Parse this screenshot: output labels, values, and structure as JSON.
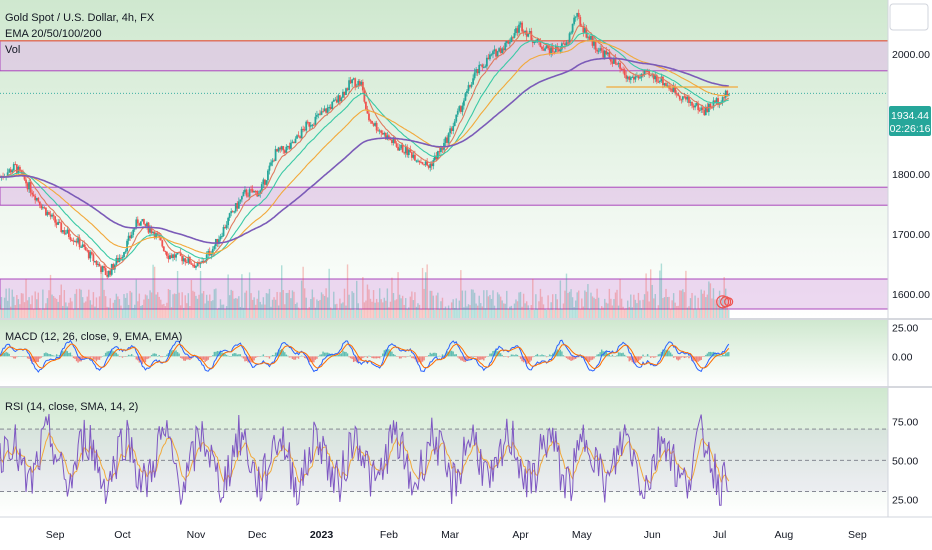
{
  "chart_data": [
    {
      "type": "candlestick",
      "title": "Gold Spot / U.S. Dollar, 4h, FX",
      "indicators": [
        "EMA 20/50/100/200",
        "Vol"
      ],
      "ylim": [
        1560,
        2090
      ],
      "yticks": [
        2000.0,
        1800.0,
        1700.0,
        1600.0
      ],
      "price": {
        "last": "1934.44",
        "countdown": "02:26:16",
        "value": 1934.44
      },
      "zones": [
        {
          "from": 1972,
          "to": 2022
        },
        {
          "from": 1748,
          "to": 1778
        },
        {
          "from": 1575,
          "to": 1625
        }
      ],
      "resistance_line": 2022,
      "price_path": [
        [
          0,
          1795
        ],
        [
          5,
          1812
        ],
        [
          10,
          1775
        ],
        [
          15,
          1738
        ],
        [
          20,
          1708
        ],
        [
          25,
          1690
        ],
        [
          30,
          1660
        ],
        [
          35,
          1632
        ],
        [
          40,
          1668
        ],
        [
          45,
          1722
        ],
        [
          50,
          1705
        ],
        [
          55,
          1665
        ],
        [
          60,
          1660
        ],
        [
          65,
          1645
        ],
        [
          70,
          1680
        ],
        [
          75,
          1728
        ],
        [
          80,
          1768
        ],
        [
          85,
          1770
        ],
        [
          90,
          1835
        ],
        [
          95,
          1845
        ],
        [
          100,
          1880
        ],
        [
          105,
          1900
        ],
        [
          110,
          1922
        ],
        [
          115,
          1955
        ],
        [
          118,
          1950
        ],
        [
          120,
          1895
        ],
        [
          125,
          1868
        ],
        [
          130,
          1845
        ],
        [
          135,
          1832
        ],
        [
          140,
          1812
        ],
        [
          145,
          1848
        ],
        [
          150,
          1905
        ],
        [
          155,
          1965
        ],
        [
          160,
          1995
        ],
        [
          165,
          2015
        ],
        [
          170,
          2048
        ],
        [
          175,
          2020
        ],
        [
          180,
          2005
        ],
        [
          185,
          2015
        ],
        [
          188,
          2065
        ],
        [
          192,
          2030
        ],
        [
          195,
          2010
        ],
        [
          200,
          1990
        ],
        [
          205,
          1958
        ],
        [
          210,
          1965
        ],
        [
          215,
          1960
        ],
        [
          220,
          1940
        ],
        [
          225,
          1920
        ],
        [
          230,
          1905
        ],
        [
          235,
          1925
        ],
        [
          238,
          1934.44
        ]
      ],
      "candles_to": 238,
      "xmax": 290,
      "xticks": [
        {
          "label": "Sep",
          "x": 18
        },
        {
          "label": "Oct",
          "x": 40
        },
        {
          "label": "Nov",
          "x": 64
        },
        {
          "label": "Dec",
          "x": 84
        },
        {
          "label": "2023",
          "x": 105
        },
        {
          "label": "Feb",
          "x": 127
        },
        {
          "label": "Mar",
          "x": 147
        },
        {
          "label": "Apr",
          "x": 170
        },
        {
          "label": "May",
          "x": 190
        },
        {
          "label": "Jun",
          "x": 213
        },
        {
          "label": "Jul",
          "x": 235
        },
        {
          "label": "Aug",
          "x": 256
        },
        {
          "label": "Sep",
          "x": 280
        }
      ],
      "ema_colors": {
        "ema20": "#e07a5f",
        "ema50": "#3bc9a6",
        "ema100": "#f2a93b",
        "ema200": "#7b5bb8"
      },
      "ema_periods": {
        "ema20": 5,
        "ema50": 12,
        "ema100": 24,
        "ema200": 50
      }
    },
    {
      "type": "line",
      "title": "MACD (12, 26, close, 9, EMA, EMA)",
      "ylim": [
        -25,
        30
      ],
      "yticks": [
        25.0,
        0.0
      ]
    },
    {
      "type": "line",
      "title": "RSI (14, close, SMA, 14, 2)",
      "ylim": [
        15,
        95
      ],
      "yticks": [
        75.0,
        50.0,
        25.0
      ],
      "bands": [
        70,
        50,
        30
      ]
    }
  ],
  "colors": {
    "up": "#26a69a",
    "down": "#ef5350",
    "zone_fill": "#e1bee7",
    "zone_edge": "#ab47bc",
    "price_tag": "#26a69a",
    "rsi_line": "#7e57c2",
    "rsi_ma": "#f2a93b",
    "macd_line": "#2962ff",
    "macd_signal": "#ff6d00",
    "bg_green": "#cfe8cf"
  }
}
